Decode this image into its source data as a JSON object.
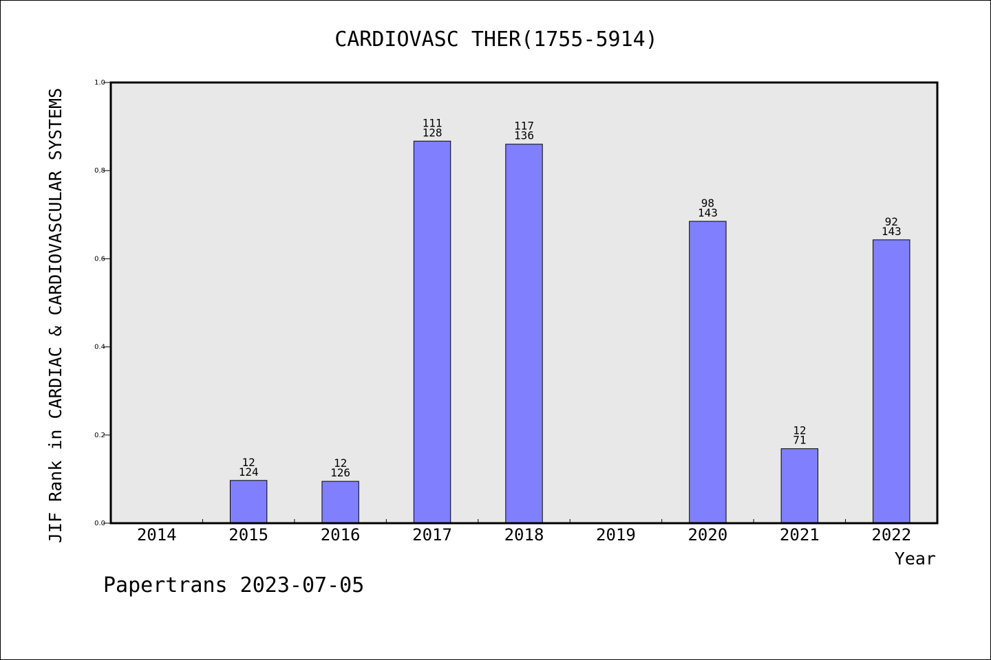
{
  "chart_data": {
    "type": "bar",
    "title": "CARDIOVASC THER(1755-5914)",
    "xlabel": "Year",
    "ylabel": "JIF Rank in CARDIAC & CARDIOVASCULAR SYSTEMS",
    "ylim": [
      0,
      1.0
    ],
    "yticks": [
      "0.0",
      "0.2",
      "0.4",
      "0.6",
      "0.8",
      "1.0"
    ],
    "grid": false,
    "categories": [
      "2014",
      "2015",
      "2016",
      "2017",
      "2018",
      "2019",
      "2020",
      "2021",
      "2022"
    ],
    "values": [
      null,
      0.097,
      0.095,
      0.867,
      0.86,
      null,
      0.685,
      0.169,
      0.643
    ],
    "rank": [
      null,
      12,
      12,
      111,
      117,
      null,
      98,
      12,
      92
    ],
    "total": [
      null,
      124,
      126,
      128,
      136,
      null,
      143,
      71,
      143
    ],
    "colors": {
      "bar": "#8080ff",
      "plot_bg": "#e8e8e8",
      "bar_edge": "#000000"
    }
  },
  "footer": {
    "watermark": "Papertrans 2023-07-05"
  }
}
